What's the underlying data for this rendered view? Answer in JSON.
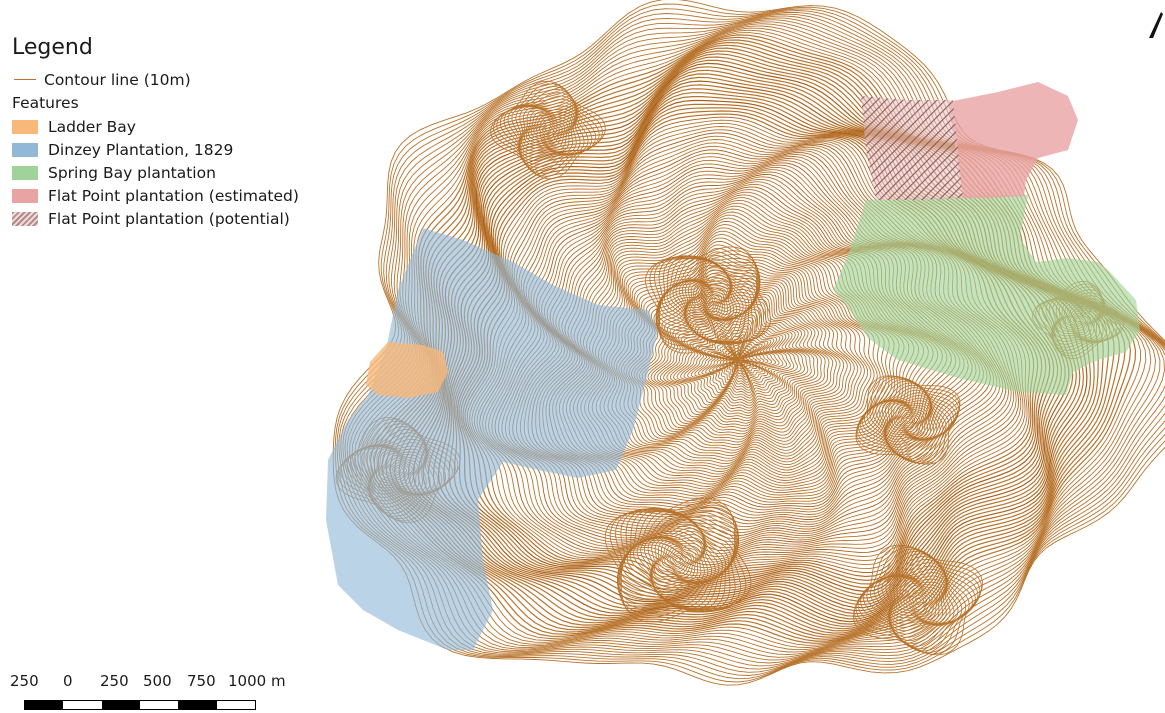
{
  "legend": {
    "title": "Legend",
    "contour_label": "Contour line (10m)",
    "features_label": "Features",
    "items": [
      {
        "label": "Ladder Bay",
        "color": "#f7b87a"
      },
      {
        "label": "Dinzey Plantation, 1829",
        "color": "#92b8d8"
      },
      {
        "label": "Spring Bay plantation",
        "color": "#9fd39a"
      },
      {
        "label": "Flat Point plantation (estimated)",
        "color": "#e8a3a3"
      },
      {
        "label": "Flat Point plantation (potential)",
        "color": "#b48a8a"
      }
    ]
  },
  "scale_bar": {
    "labels": [
      "250",
      "0",
      "250",
      "500",
      "750",
      "1000 m"
    ]
  },
  "colors": {
    "contour": "#b8742c",
    "contour_dark": "#a85f1c"
  },
  "icons": {
    "north_arrow": "north-arrow-icon"
  }
}
